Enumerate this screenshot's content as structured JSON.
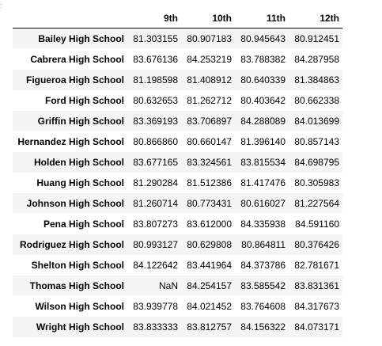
{
  "prompt_mark": ":",
  "table": {
    "index_header": "",
    "columns": [
      "9th",
      "10th",
      "11th",
      "12th"
    ],
    "rows": [
      {
        "school": "Bailey High School",
        "values": [
          "81.303155",
          "80.907183",
          "80.945643",
          "80.912451"
        ]
      },
      {
        "school": "Cabrera High School",
        "values": [
          "83.676136",
          "84.253219",
          "83.788382",
          "84.287958"
        ]
      },
      {
        "school": "Figueroa High School",
        "values": [
          "81.198598",
          "81.408912",
          "80.640339",
          "81.384863"
        ]
      },
      {
        "school": "Ford High School",
        "values": [
          "80.632653",
          "81.262712",
          "80.403642",
          "80.662338"
        ]
      },
      {
        "school": "Griffin High School",
        "values": [
          "83.369193",
          "83.706897",
          "84.288089",
          "84.013699"
        ]
      },
      {
        "school": "Hernandez High School",
        "values": [
          "80.866860",
          "80.660147",
          "81.396140",
          "80.857143"
        ]
      },
      {
        "school": "Holden High School",
        "values": [
          "83.677165",
          "83.324561",
          "83.815534",
          "84.698795"
        ]
      },
      {
        "school": "Huang High School",
        "values": [
          "81.290284",
          "81.512386",
          "81.417476",
          "80.305983"
        ]
      },
      {
        "school": "Johnson High School",
        "values": [
          "81.260714",
          "80.773431",
          "80.616027",
          "81.227564"
        ]
      },
      {
        "school": "Pena High School",
        "values": [
          "83.807273",
          "83.612000",
          "84.335938",
          "84.591160"
        ]
      },
      {
        "school": "Rodriguez High School",
        "values": [
          "80.993127",
          "80.629808",
          "80.864811",
          "80.376426"
        ]
      },
      {
        "school": "Shelton High School",
        "values": [
          "84.122642",
          "83.441964",
          "84.373786",
          "82.781671"
        ]
      },
      {
        "school": "Thomas High School",
        "values": [
          "NaN",
          "84.254157",
          "83.585542",
          "83.831361"
        ]
      },
      {
        "school": "Wilson High School",
        "values": [
          "83.939778",
          "84.021452",
          "83.764608",
          "84.317673"
        ]
      },
      {
        "school": "Wright High School",
        "values": [
          "83.833333",
          "83.812757",
          "84.156322",
          "84.073171"
        ]
      }
    ]
  }
}
